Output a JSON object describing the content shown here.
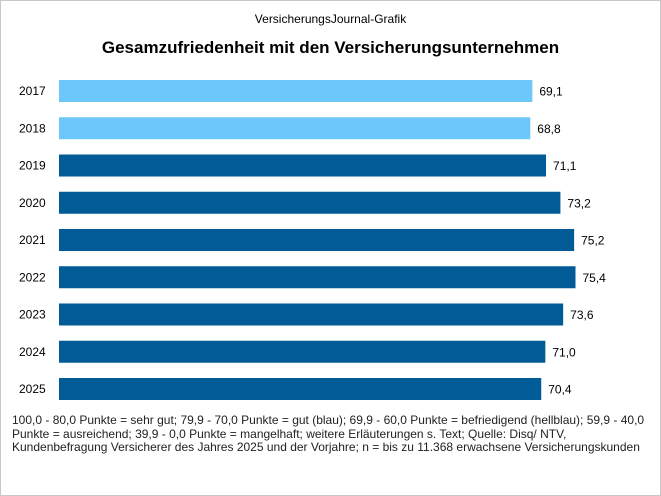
{
  "header": {
    "source_label": "VersicherungsJournal-Grafik"
  },
  "colors": {
    "light_blue": "#6cc8fb",
    "dark_blue": "#005b96"
  },
  "chart_data": {
    "type": "bar",
    "orientation": "horizontal",
    "title": "Gesamzufriedenheit mit den Versicherungsunternehmen",
    "categories": [
      "2017",
      "2018",
      "2019",
      "2020",
      "2021",
      "2022",
      "2023",
      "2024",
      "2025"
    ],
    "values": [
      69.1,
      68.8,
      71.1,
      73.2,
      75.2,
      75.4,
      73.6,
      71.0,
      70.4
    ],
    "value_labels": [
      "69,1",
      "68,8",
      "71,1",
      "73,2",
      "75,2",
      "75,4",
      "73,6",
      "71,0",
      "70,4"
    ],
    "bar_colors": [
      "light_blue",
      "light_blue",
      "dark_blue",
      "dark_blue",
      "dark_blue",
      "dark_blue",
      "dark_blue",
      "dark_blue",
      "dark_blue"
    ],
    "xlim": [
      0,
      80
    ],
    "grid": false,
    "xlabel": "",
    "ylabel": ""
  },
  "footnote": {
    "text": "100,0 - 80,0 Punkte = sehr gut; 79,9 - 70,0 Punkte = gut (blau); 69,9 - 60,0 Punkte = befriedigend (hellblau); 59,9 - 40,0 Punkte = ausreichend; 39,9 - 0,0 Punkte = mangelhaft; weitere Erläuterungen s. Text; Quelle: Disq/ NTV, Kundenbefragung Versicherer des Jahres 2025 und der Vorjahre; n = bis zu 11.368 erwachsene Versicherungskunden"
  }
}
